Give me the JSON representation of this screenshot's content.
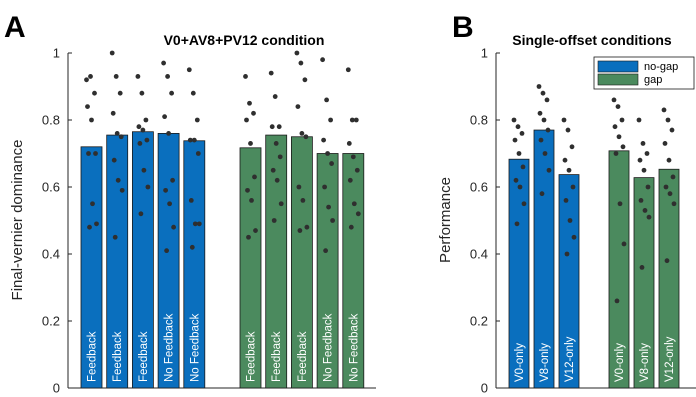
{
  "colors": {
    "no_gap": "#0a6fbe",
    "gap": "#4b8a5e",
    "dot": "#2f2f2f",
    "axis": "#262626"
  },
  "chart_data": [
    {
      "panel": "A",
      "type": "bar",
      "title": "V0+AV8+PV12 condition",
      "xlabel": "",
      "ylabel": "Final-vernier dominance",
      "ylim": [
        0,
        1
      ],
      "yticks": [
        0,
        0.2,
        0.4,
        0.6,
        0.8,
        1
      ],
      "ytick_labels": [
        "0",
        "0.2",
        "0.4",
        "0.6",
        "0.8",
        "1"
      ],
      "series": [
        {
          "group": "no-gap",
          "categories": [
            "Feedback",
            "Feedback",
            "Feedback",
            "No Feedback",
            "No Feedback"
          ],
          "values": [
            0.72,
            0.755,
            0.765,
            0.76,
            0.738
          ]
        },
        {
          "group": "gap",
          "categories": [
            "Feedback",
            "Feedback",
            "Feedback",
            "No Feedback",
            "No Feedback"
          ],
          "values": [
            0.717,
            0.755,
            0.75,
            0.7,
            0.7
          ]
        }
      ],
      "points": [
        [
          0.92,
          0.93,
          0.88,
          0.84,
          0.8,
          0.7,
          0.7,
          0.55,
          0.49,
          0.48
        ],
        [
          1.0,
          0.93,
          0.88,
          0.82,
          0.76,
          0.75,
          0.68,
          0.62,
          0.59,
          0.45
        ],
        [
          0.93,
          0.88,
          0.8,
          0.78,
          0.77,
          0.74,
          0.73,
          0.65,
          0.6,
          0.52
        ],
        [
          0.97,
          0.93,
          0.88,
          0.81,
          0.76,
          0.62,
          0.59,
          0.55,
          0.48,
          0.41
        ],
        [
          0.95,
          0.88,
          0.8,
          0.74,
          0.74,
          0.7,
          0.56,
          0.49,
          0.49,
          0.42
        ]
      ],
      "points_gap": [
        [
          0.93,
          0.85,
          0.82,
          0.8,
          0.73,
          0.63,
          0.59,
          0.56,
          0.47,
          0.45
        ],
        [
          0.94,
          0.87,
          0.78,
          0.78,
          0.73,
          0.69,
          0.65,
          0.62,
          0.55,
          0.5
        ],
        [
          1.0,
          0.97,
          0.92,
          0.84,
          0.76,
          0.75,
          0.6,
          0.56,
          0.48,
          0.47
        ],
        [
          0.98,
          0.86,
          0.8,
          0.74,
          0.7,
          0.67,
          0.6,
          0.54,
          0.5,
          0.41
        ],
        [
          0.95,
          0.8,
          0.8,
          0.73,
          0.69,
          0.65,
          0.62,
          0.55,
          0.52,
          0.48
        ]
      ]
    },
    {
      "panel": "B",
      "type": "bar",
      "title": "Single-offset conditions",
      "xlabel": "",
      "ylabel": "Performance",
      "ylim": [
        0,
        1
      ],
      "yticks": [
        0,
        0.2,
        0.4,
        0.6,
        0.8,
        1
      ],
      "ytick_labels": [
        "0",
        "0.2",
        "0.4",
        "0.6",
        "0.8",
        "1"
      ],
      "legend": {
        "placement": "top-right",
        "entries": [
          "no-gap",
          "gap"
        ]
      },
      "series": [
        {
          "name": "no-gap",
          "categories": [
            "V0-only",
            "V8-only",
            "V12-only"
          ],
          "values": [
            0.683,
            0.77,
            0.637
          ]
        },
        {
          "name": "gap",
          "categories": [
            "V0-only",
            "V8-only",
            "V12-only"
          ],
          "values": [
            0.708,
            0.628,
            0.653
          ]
        }
      ],
      "points": [
        [
          0.8,
          0.78,
          0.76,
          0.74,
          0.7,
          0.66,
          0.62,
          0.6,
          0.55,
          0.49
        ],
        [
          0.9,
          0.88,
          0.86,
          0.82,
          0.8,
          0.77,
          0.74,
          0.7,
          0.65,
          0.58
        ],
        [
          0.8,
          0.77,
          0.72,
          0.68,
          0.65,
          0.6,
          0.56,
          0.5,
          0.45,
          0.4
        ]
      ],
      "points_gap": [
        [
          0.86,
          0.84,
          0.8,
          0.78,
          0.75,
          0.72,
          0.7,
          0.55,
          0.43,
          0.26
        ],
        [
          0.8,
          0.73,
          0.7,
          0.68,
          0.65,
          0.6,
          0.56,
          0.53,
          0.51,
          0.36
        ],
        [
          0.83,
          0.8,
          0.77,
          0.73,
          0.68,
          0.63,
          0.6,
          0.58,
          0.55,
          0.38
        ]
      ]
    }
  ]
}
